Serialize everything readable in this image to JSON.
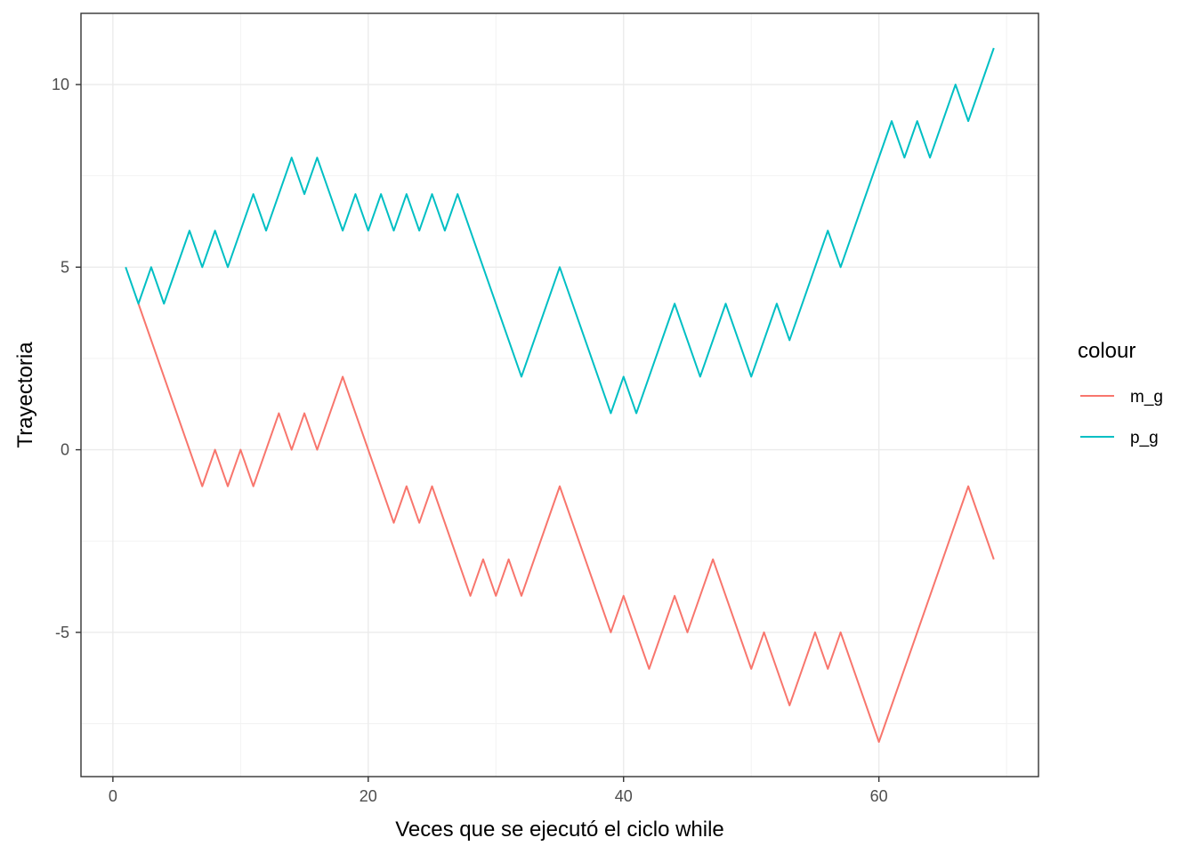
{
  "chart_data": {
    "type": "line",
    "title": "",
    "xlabel": "Veces que se ejecutó el ciclo while",
    "ylabel": "Trayectoria",
    "xlim": [
      -2.5,
      72.5
    ],
    "ylim": [
      -8.95,
      11.95
    ],
    "x_ticks": [
      0,
      20,
      40,
      60
    ],
    "x_tick_labels": [
      "0",
      "20",
      "40",
      "60"
    ],
    "y_ticks": [
      -5,
      0,
      5,
      10
    ],
    "y_tick_labels": [
      "-5",
      "0",
      "5",
      "10"
    ],
    "grid": true,
    "legend": {
      "title": "colour",
      "position": "right"
    },
    "series": [
      {
        "name": "m_g",
        "color": "#F8766D",
        "x": [
          2,
          7,
          8,
          9,
          10,
          11,
          13,
          14,
          15,
          16,
          18,
          22,
          23,
          24,
          25,
          28,
          29,
          30,
          31,
          32,
          35,
          39,
          40,
          42,
          44,
          45,
          47,
          50,
          51,
          53,
          55,
          56,
          57,
          60,
          67,
          69
        ],
        "values": [
          4,
          -1,
          0,
          -1,
          0,
          -1,
          1,
          0,
          1,
          0,
          2,
          -2,
          -1,
          -2,
          -1,
          -4,
          -3,
          -4,
          -3,
          -4,
          -1,
          -5,
          -4,
          -6,
          -4,
          -5,
          -3,
          -6,
          -5,
          -7,
          -5,
          -6,
          -5,
          -8,
          -1,
          -3
        ]
      },
      {
        "name": "p_g",
        "color": "#00BFC4",
        "x": [
          1,
          2,
          3,
          4,
          6,
          7,
          8,
          9,
          11,
          12,
          14,
          15,
          16,
          18,
          19,
          20,
          21,
          22,
          23,
          24,
          25,
          26,
          27,
          32,
          35,
          39,
          40,
          41,
          44,
          46,
          48,
          50,
          52,
          53,
          56,
          57,
          61,
          62,
          63,
          64,
          66,
          67,
          69
        ],
        "values": [
          5,
          4,
          5,
          4,
          6,
          5,
          6,
          5,
          7,
          6,
          8,
          7,
          8,
          6,
          7,
          6,
          7,
          6,
          7,
          6,
          7,
          6,
          7,
          2,
          5,
          1,
          2,
          1,
          4,
          2,
          4,
          2,
          4,
          3,
          6,
          5,
          9,
          8,
          9,
          8,
          10,
          9,
          11
        ]
      }
    ]
  }
}
